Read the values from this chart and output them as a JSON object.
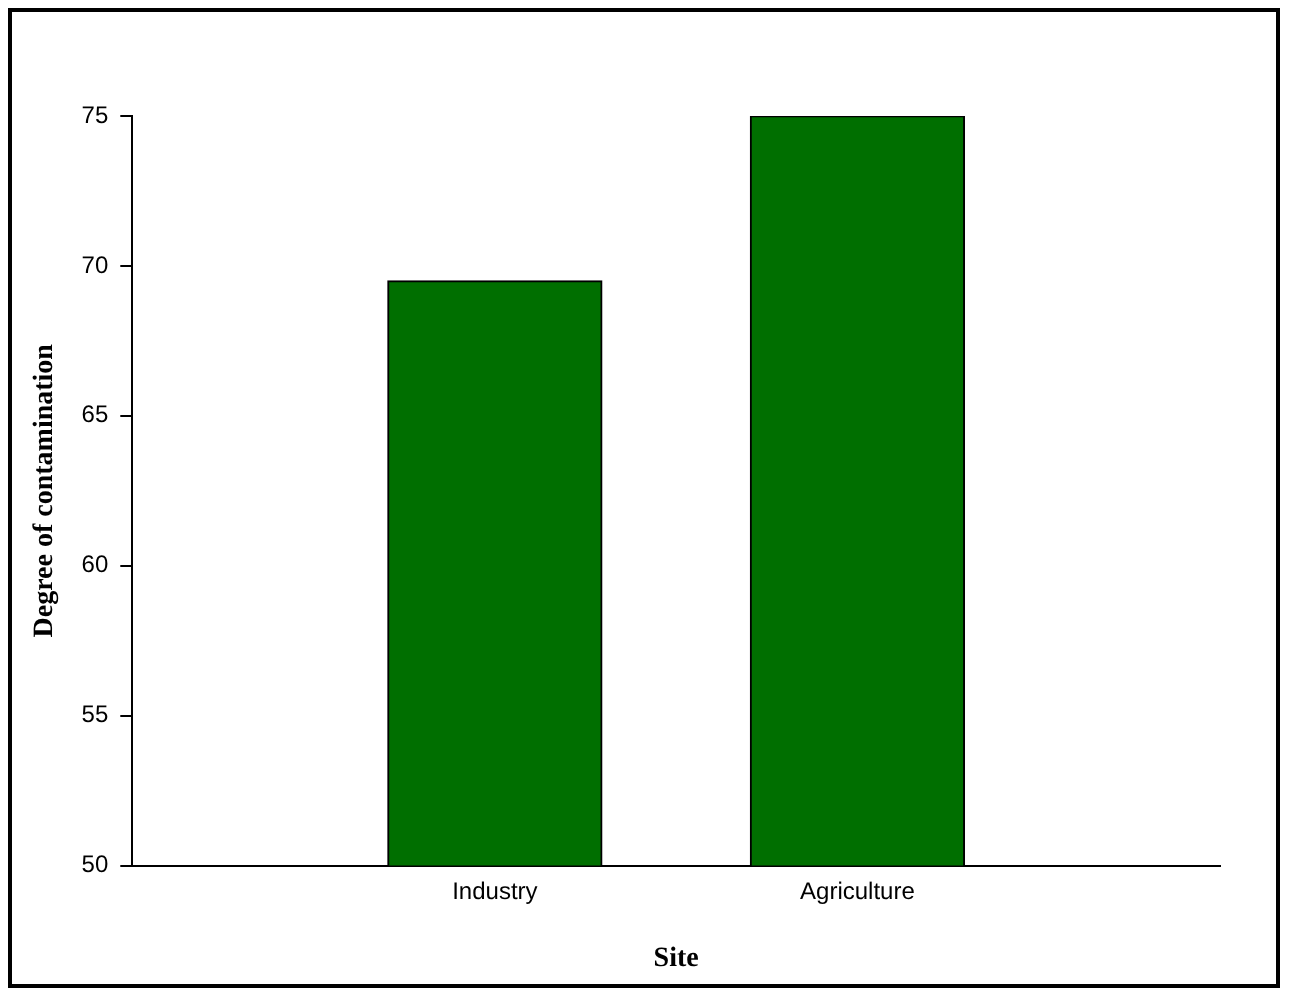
{
  "chart_data": {
    "type": "bar",
    "categories": [
      "Industry",
      "Agriculture"
    ],
    "values": [
      69.5,
      75
    ],
    "color": "#006f00",
    "xlabel": "Site",
    "ylabel": "Degree of contamination",
    "ylim": [
      50,
      75
    ],
    "yticks": [
      50,
      55,
      60,
      65,
      70,
      75
    ],
    "grid": false,
    "legend": false
  }
}
